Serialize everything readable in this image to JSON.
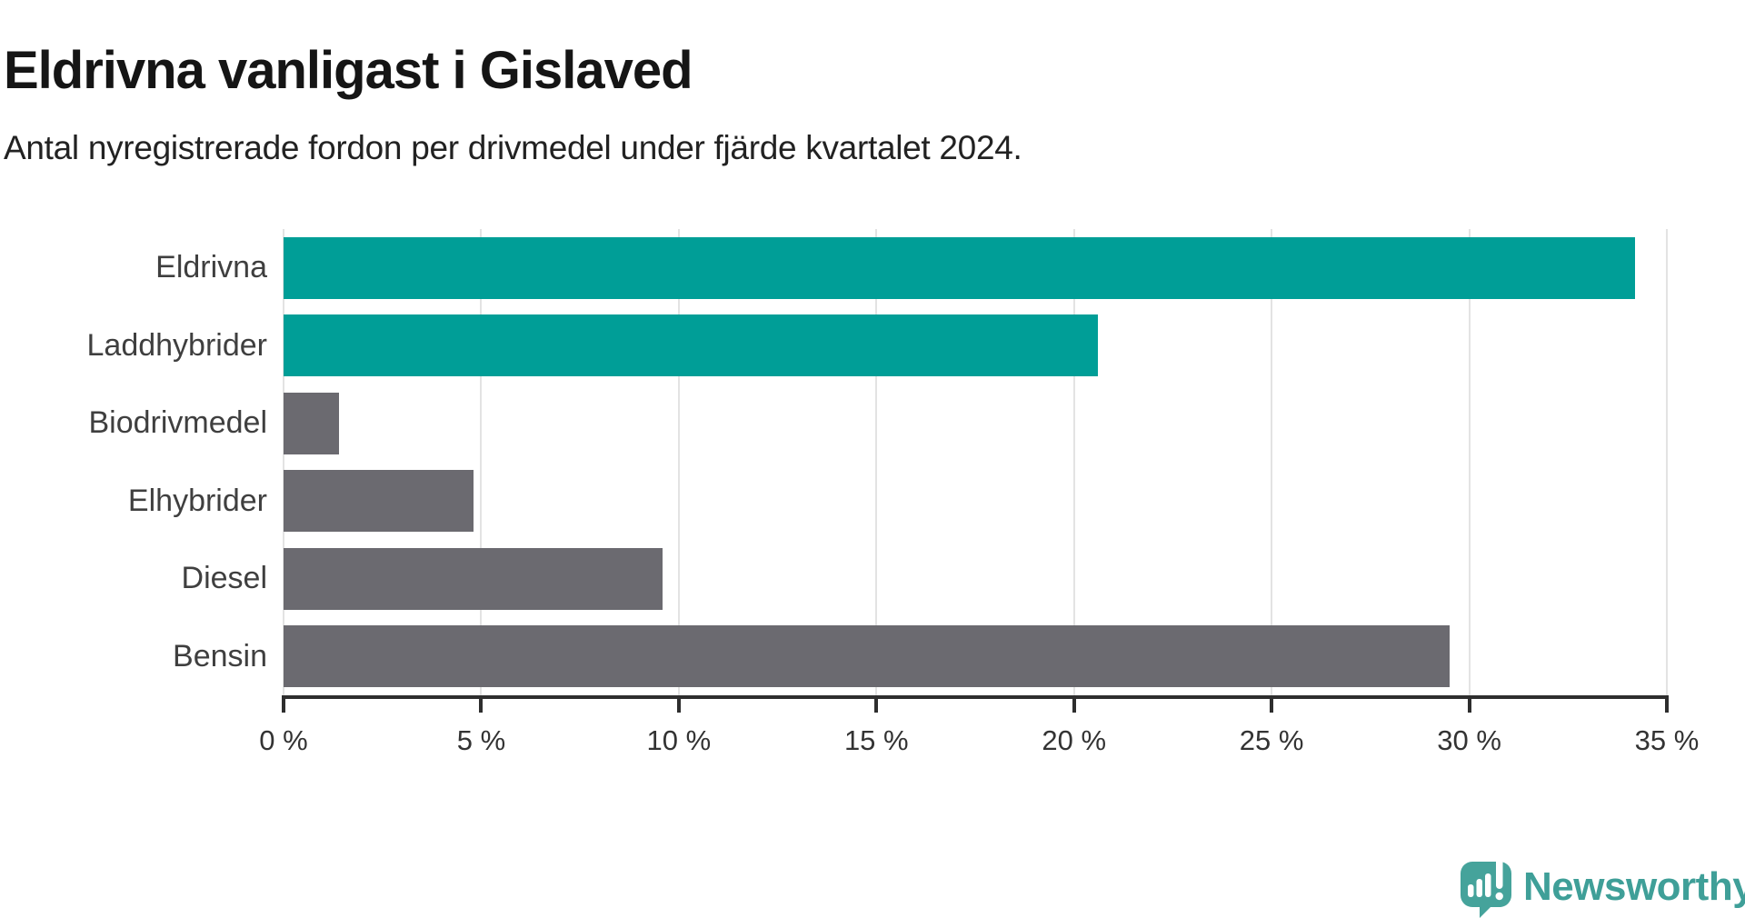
{
  "header": {
    "title": "Eldrivna vanligast i Gislaved",
    "subtitle": "Antal nyregistrerade fordon per drivmedel under fjärde kvartalet 2024."
  },
  "chart_data": {
    "type": "bar",
    "orientation": "horizontal",
    "title": "Eldrivna vanligast i Gislaved",
    "subtitle": "Antal nyregistrerade fordon per drivmedel under fjärde kvartalet 2024.",
    "categories": [
      "Eldrivna",
      "Laddhybrider",
      "Biodrivmedel",
      "Elhybrider",
      "Diesel",
      "Bensin"
    ],
    "values": [
      34.2,
      20.6,
      1.4,
      4.8,
      9.6,
      29.5
    ],
    "unit": "%",
    "bar_colors": [
      "#009e97",
      "#009e97",
      "#6b6a70",
      "#6b6a70",
      "#6b6a70",
      "#6b6a70"
    ],
    "highlight_color": "#009e97",
    "base_color": "#6b6a70",
    "xlim": [
      0,
      35
    ],
    "x_ticks": [
      0,
      5,
      10,
      15,
      20,
      25,
      30,
      35
    ],
    "x_tick_labels": [
      "0 %",
      "5 %",
      "10 %",
      "15 %",
      "20 %",
      "25 %",
      "30 %",
      "35 %"
    ],
    "grid": "vertical-only",
    "legend": "none"
  },
  "footer": {
    "brand_name": "Newsworthy",
    "brand_color": "#3f9f98",
    "logo_icon": "newsworthy-speech-bubble-chart-icon"
  }
}
